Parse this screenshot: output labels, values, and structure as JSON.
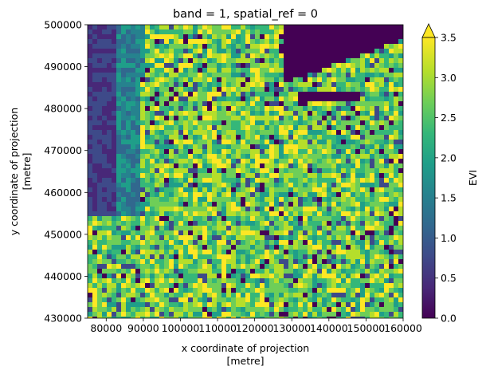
{
  "chart_data": {
    "type": "heatmap",
    "title": "band = 1, spatial_ref = 0",
    "xlabel": [
      "x coordinate of projection",
      "[metre]"
    ],
    "ylabel": [
      "y coordinate of projection",
      "[metre]"
    ],
    "xlim": [
      75000,
      160000
    ],
    "ylim": [
      430000,
      500000
    ],
    "x_ticks": [
      80000,
      90000,
      100000,
      110000,
      120000,
      130000,
      140000,
      150000,
      160000
    ],
    "x_tick_labels": [
      "80000",
      "90000",
      "100000",
      "110000",
      "120000",
      "130000",
      "140000",
      "150000",
      "160000"
    ],
    "y_ticks": [
      430000,
      440000,
      450000,
      460000,
      470000,
      480000,
      490000,
      500000
    ],
    "y_tick_labels": [
      "430000",
      "440000",
      "450000",
      "460000",
      "470000",
      "480000",
      "490000",
      "500000"
    ],
    "colorbar": {
      "label": "EVI",
      "colormap": "viridis",
      "range": [
        0.0,
        3.5
      ],
      "extend": "max",
      "ticks": [
        0.0,
        0.5,
        1.0,
        1.5,
        2.0,
        2.5,
        3.0,
        3.5
      ],
      "tick_labels": [
        "0.0",
        "0.5",
        "1.0",
        "1.5",
        "2.0",
        "2.5",
        "3.0",
        "3.5"
      ],
      "colors": [
        "#440154",
        "#482878",
        "#3e4a89",
        "#31688e",
        "#26828e",
        "#1f9e89",
        "#35b779",
        "#6ece58",
        "#b5de2b",
        "#fde725"
      ]
    }
  }
}
